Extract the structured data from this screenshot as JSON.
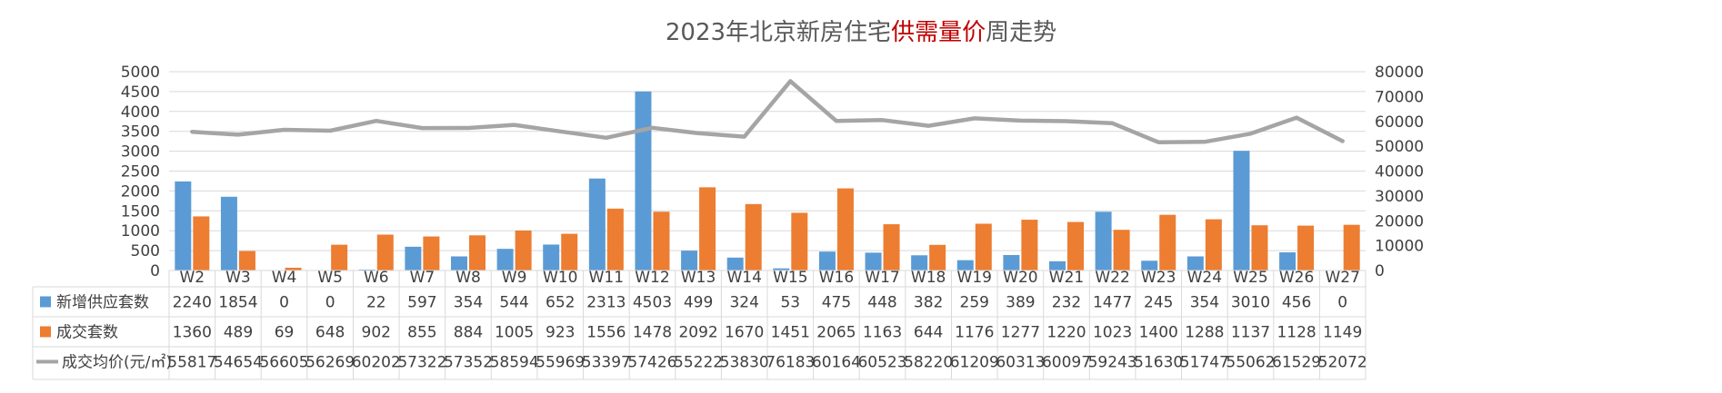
{
  "chart_data": {
    "type": "bar",
    "title": {
      "parts": [
        {
          "text": "2023年北京新房住宅",
          "emphasis": false
        },
        {
          "text": "供需量价",
          "emphasis": true
        },
        {
          "text": "周走势",
          "emphasis": false
        }
      ]
    },
    "categories": [
      "W2",
      "W3",
      "W4",
      "W5",
      "W6",
      "W7",
      "W8",
      "W9",
      "W10",
      "W11",
      "W12",
      "W13",
      "W14",
      "W15",
      "W16",
      "W17",
      "W18",
      "W19",
      "W20",
      "W21",
      "W22",
      "W23",
      "W24",
      "W25",
      "W26",
      "W27"
    ],
    "series": [
      {
        "name": "新增供应套数",
        "type": "bar",
        "axis": "left",
        "color": "#5b9bd5",
        "values": [
          2240,
          1854,
          0,
          0,
          22,
          597,
          354,
          544,
          652,
          2313,
          4503,
          499,
          324,
          53,
          475,
          448,
          382,
          259,
          389,
          232,
          1477,
          245,
          354,
          3010,
          456,
          0
        ]
      },
      {
        "name": "成交套数",
        "type": "bar",
        "axis": "left",
        "color": "#ed7d31",
        "values": [
          1360,
          489,
          69,
          648,
          902,
          855,
          884,
          1005,
          923,
          1556,
          1478,
          2092,
          1670,
          1451,
          2065,
          1163,
          644,
          1176,
          1277,
          1220,
          1023,
          1400,
          1288,
          1137,
          1128,
          1149
        ]
      },
      {
        "name": "成交均价(元/㎡)",
        "type": "line",
        "axis": "right",
        "color": "#a5a5a5",
        "values": [
          55817,
          54654,
          56605,
          56269,
          60202,
          57322,
          57352,
          58594,
          55969,
          53397,
          57426,
          55222,
          53830,
          76183,
          60164,
          60523,
          58220,
          61209,
          60313,
          60097,
          59243,
          51630,
          51747,
          55062,
          61529,
          52072
        ]
      }
    ],
    "y_left": {
      "min": 0,
      "max": 5000,
      "ticks": [
        "0",
        "500",
        "1000",
        "1500",
        "2000",
        "2500",
        "3000",
        "3500",
        "4000",
        "4500",
        "5000"
      ]
    },
    "y_right": {
      "min": 0,
      "max": 80000,
      "ticks": [
        "0",
        "10000",
        "20000",
        "30000",
        "40000",
        "50000",
        "60000",
        "70000",
        "80000"
      ]
    },
    "grid": true,
    "legend_placement": "data-table",
    "data_table": true
  }
}
